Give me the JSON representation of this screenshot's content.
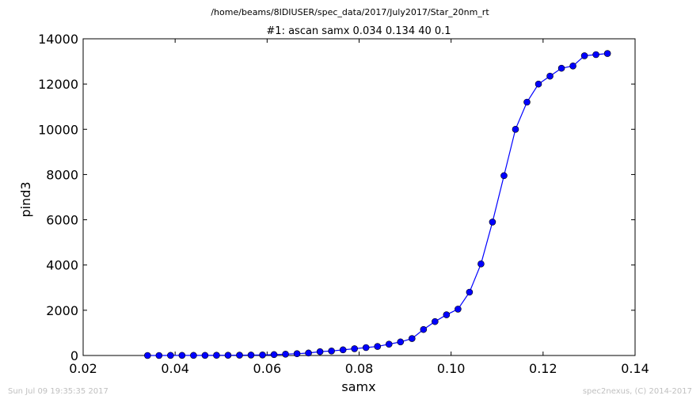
{
  "chart_data": {
    "type": "line",
    "suptitle": "/home/beams/8IDIUSER/spec_data/2017/July2017/Star_20nm_rt",
    "title": "#1: ascan  samx 0.034 0.134  40 0.1",
    "xlabel": "samx",
    "ylabel": "pind3",
    "xlim": [
      0.02,
      0.14
    ],
    "ylim": [
      0,
      14000
    ],
    "xticks": [
      "0.02",
      "0.04",
      "0.06",
      "0.08",
      "0.10",
      "0.12",
      "0.14"
    ],
    "yticks": [
      "0",
      "2000",
      "4000",
      "6000",
      "8000",
      "10000",
      "12000",
      "14000"
    ],
    "grid": false,
    "color": "#0000ff",
    "series": [
      {
        "x": [
          0.034,
          0.0365,
          0.039,
          0.0415,
          0.044,
          0.0465,
          0.049,
          0.0515,
          0.054,
          0.0565,
          0.059,
          0.0615,
          0.064,
          0.0665,
          0.069,
          0.0715,
          0.074,
          0.0765,
          0.079,
          0.0815,
          0.084,
          0.0865,
          0.089,
          0.0915,
          0.094,
          0.0965,
          0.099,
          0.1015,
          0.104,
          0.1065,
          0.109,
          0.1115,
          0.114,
          0.1165,
          0.119,
          0.1215,
          0.124,
          0.1265,
          0.129,
          0.1315,
          0.134
        ],
        "y": [
          0,
          0,
          5,
          5,
          5,
          5,
          10,
          10,
          15,
          20,
          25,
          40,
          60,
          80,
          110,
          170,
          200,
          250,
          300,
          350,
          400,
          500,
          600,
          750,
          1150,
          1500,
          1800,
          2050,
          2800,
          4050,
          5900,
          7950,
          10000,
          11200,
          12000,
          12350,
          12700,
          12800,
          13250,
          13300,
          13350
        ]
      }
    ]
  },
  "footer": {
    "left": "Sun Jul 09 19:35:35 2017",
    "right": "spec2nexus, (C) 2014-2017"
  }
}
